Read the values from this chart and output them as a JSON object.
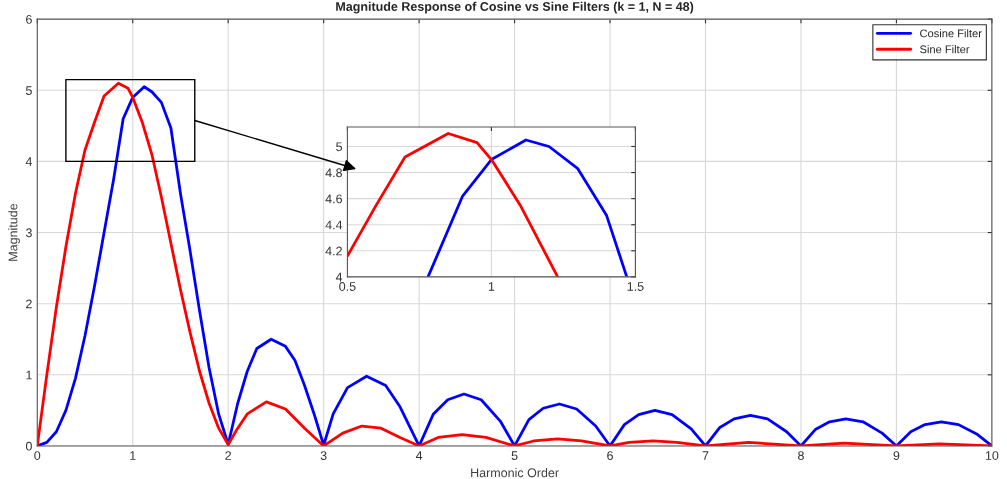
{
  "chart_data": [
    {
      "type": "line",
      "title": "Magnitude Response of Cosine vs Sine Filters (k = 1, N = 48)",
      "xlabel": "Harmonic Order",
      "ylabel": "Magnitude",
      "xlim": [
        0,
        10
      ],
      "ylim": [
        0,
        6
      ],
      "xticks": [
        0,
        1,
        2,
        3,
        4,
        5,
        6,
        7,
        8,
        9,
        10
      ],
      "yticks": [
        0,
        1,
        2,
        3,
        4,
        5,
        6
      ],
      "grid": true,
      "legend": "top right",
      "line_style": "solid",
      "marker": "none",
      "series": [
        {
          "name": "Cosine Filter",
          "color": "#0000ff",
          "x": [
            0,
            0.1,
            0.2,
            0.3,
            0.4,
            0.5,
            0.6,
            0.7,
            0.8,
            0.9,
            1.0,
            1.12,
            1.2,
            1.3,
            1.4,
            1.5,
            1.6,
            1.7,
            1.8,
            1.9,
            2.0,
            2.1,
            2.2,
            2.3,
            2.45,
            2.6,
            2.7,
            2.8,
            2.9,
            3.0,
            3.1,
            3.25,
            3.45,
            3.65,
            3.8,
            4.0,
            4.15,
            4.3,
            4.47,
            4.65,
            4.85,
            5.0,
            5.15,
            5.3,
            5.47,
            5.65,
            5.85,
            6.0,
            6.15,
            6.3,
            6.47,
            6.65,
            6.85,
            7.0,
            7.15,
            7.3,
            7.47,
            7.65,
            7.85,
            8.0,
            8.15,
            8.3,
            8.47,
            8.65,
            8.85,
            9.0,
            9.15,
            9.3,
            9.47,
            9.65,
            9.85,
            10.0
          ],
          "values": [
            0,
            0.05,
            0.2,
            0.5,
            0.95,
            1.55,
            2.25,
            3.0,
            3.75,
            4.6,
            4.9,
            5.05,
            4.98,
            4.83,
            4.47,
            3.55,
            2.75,
            1.9,
            1.1,
            0.45,
            0.02,
            0.6,
            1.05,
            1.37,
            1.5,
            1.4,
            1.2,
            0.85,
            0.45,
            0.01,
            0.45,
            0.82,
            0.98,
            0.85,
            0.55,
            0,
            0.45,
            0.65,
            0.73,
            0.65,
            0.35,
            0,
            0.37,
            0.53,
            0.59,
            0.52,
            0.28,
            0,
            0.3,
            0.44,
            0.5,
            0.44,
            0.24,
            0,
            0.26,
            0.38,
            0.43,
            0.38,
            0.2,
            0,
            0.23,
            0.34,
            0.38,
            0.34,
            0.18,
            0,
            0.2,
            0.3,
            0.34,
            0.3,
            0.16,
            0
          ]
        },
        {
          "name": "Sine Filter",
          "color": "#ff0000",
          "x": [
            0,
            0.1,
            0.2,
            0.3,
            0.4,
            0.5,
            0.6,
            0.7,
            0.85,
            0.95,
            1.0,
            1.1,
            1.2,
            1.3,
            1.4,
            1.5,
            1.6,
            1.7,
            1.8,
            1.9,
            2.0,
            2.1,
            2.2,
            2.4,
            2.6,
            2.8,
            3.0,
            3.2,
            3.4,
            3.6,
            3.8,
            4.0,
            4.2,
            4.45,
            4.7,
            5.0,
            5.2,
            5.45,
            5.7,
            6.0,
            6.2,
            6.45,
            6.7,
            7.0,
            7.45,
            8.0,
            8.45,
            9.0,
            9.45,
            10.0
          ],
          "values": [
            0,
            1.0,
            1.95,
            2.8,
            3.55,
            4.16,
            4.55,
            4.92,
            5.1,
            5.03,
            4.9,
            4.55,
            4.1,
            3.5,
            2.85,
            2.2,
            1.6,
            1.05,
            0.6,
            0.25,
            0.02,
            0.25,
            0.45,
            0.62,
            0.52,
            0.25,
            0,
            0.18,
            0.28,
            0.25,
            0.12,
            0,
            0.12,
            0.16,
            0.12,
            0,
            0.07,
            0.1,
            0.07,
            0,
            0.05,
            0.07,
            0.05,
            0,
            0.05,
            0,
            0.04,
            0,
            0.03,
            0
          ]
        }
      ]
    },
    {
      "type": "line",
      "xlim": [
        0.5,
        1.5
      ],
      "ylim": [
        4,
        5.15
      ],
      "xticks": [
        0.5,
        1,
        1.5
      ],
      "yticks": [
        4,
        4.2,
        4.4,
        4.6,
        4.8,
        5
      ],
      "grid": true,
      "line_style": "solid",
      "marker": "none",
      "series": [
        {
          "color": "#0000ff",
          "x": [
            0.78,
            0.9,
            1.0,
            1.12,
            1.2,
            1.3,
            1.4,
            1.47
          ],
          "values": [
            4.0,
            4.62,
            4.9,
            5.05,
            5.0,
            4.83,
            4.47,
            4.0
          ]
        },
        {
          "color": "#ff0000",
          "x": [
            0.5,
            0.6,
            0.7,
            0.85,
            0.95,
            1.0,
            1.1,
            1.23
          ],
          "values": [
            4.16,
            4.55,
            4.92,
            5.1,
            5.03,
            4.9,
            4.55,
            4.0
          ]
        }
      ]
    }
  ]
}
